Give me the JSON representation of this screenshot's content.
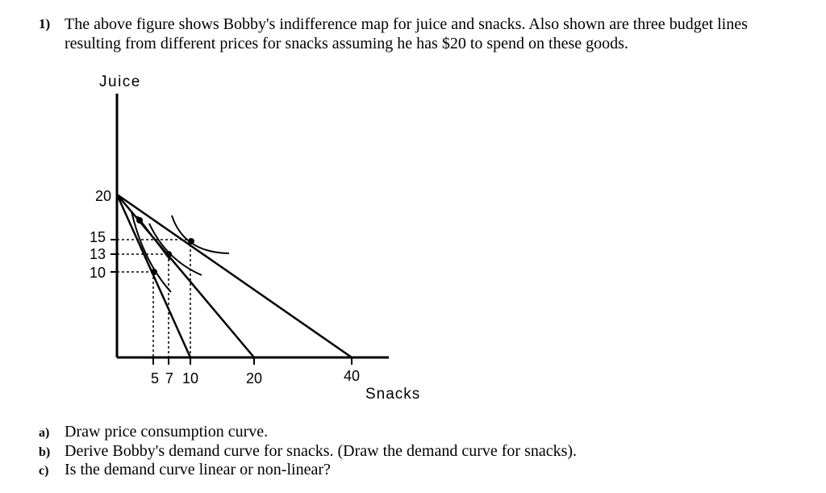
{
  "question": {
    "number": "1)",
    "text": "The above figure shows Bobby's indifference map for juice and snacks. Also shown are three budget lines resulting from different prices for snacks assuming he has $20 to spend on these goods."
  },
  "chart_data": {
    "type": "line",
    "ylabel": "Juice",
    "xlabel": "Snacks",
    "y_ticks": [
      "20",
      "15",
      "13",
      "10"
    ],
    "x_ticks": [
      "5",
      "7",
      "10",
      "20",
      "40"
    ],
    "budget_lines": [
      {
        "points": [
          [
            0,
            20
          ],
          [
            10,
            0
          ]
        ]
      },
      {
        "points": [
          [
            0,
            20
          ],
          [
            20,
            0
          ]
        ]
      },
      {
        "points": [
          [
            0,
            20
          ],
          [
            40,
            0
          ]
        ]
      }
    ],
    "tangency_points": [
      {
        "x": 5,
        "y": 10
      },
      {
        "x": 7,
        "y": 13
      },
      {
        "x": 10,
        "y": 15
      }
    ]
  },
  "parts": [
    {
      "letter": "a)",
      "text": "Draw price consumption curve."
    },
    {
      "letter": "b)",
      "text": "Derive Bobby's demand curve for snacks. (Draw the demand curve for snacks)."
    },
    {
      "letter": "c)",
      "text": "Is the demand curve linear or non-linear?"
    }
  ]
}
